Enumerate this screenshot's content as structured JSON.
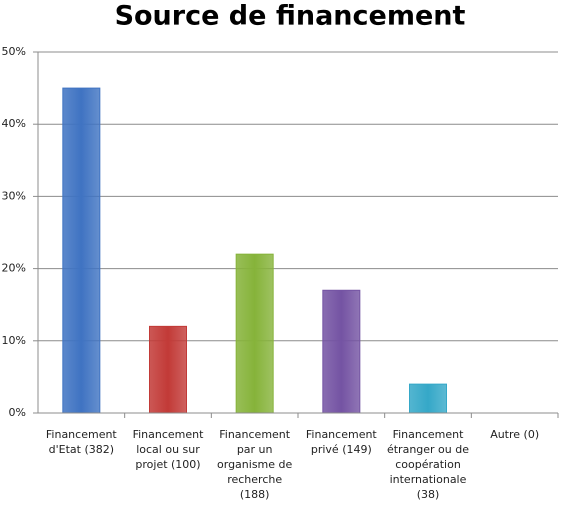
{
  "chart_data": {
    "type": "bar",
    "title": "Source de financement",
    "categories": [
      "Financement d'Etat (382)",
      "Financement local ou sur projet (100)",
      "Financement par un organisme de recherche (188)",
      "Financement privé (149)",
      "Financement étranger ou de coopération internationale (38)",
      "Autre (0)"
    ],
    "values": [
      45,
      12,
      22,
      17,
      4,
      0
    ],
    "colors": [
      "#3f73c2",
      "#c23a37",
      "#86b33a",
      "#7453a3",
      "#35a8c8",
      "#e08a2e"
    ],
    "ylim": [
      0,
      50
    ],
    "yticks": [
      {
        "value": 0,
        "label": "0%"
      },
      {
        "value": 10,
        "label": "10%"
      },
      {
        "value": 20,
        "label": "20%"
      },
      {
        "value": 30,
        "label": "30%"
      },
      {
        "value": 40,
        "label": "40%"
      },
      {
        "value": 50,
        "label": "50%"
      }
    ],
    "grid": true
  }
}
